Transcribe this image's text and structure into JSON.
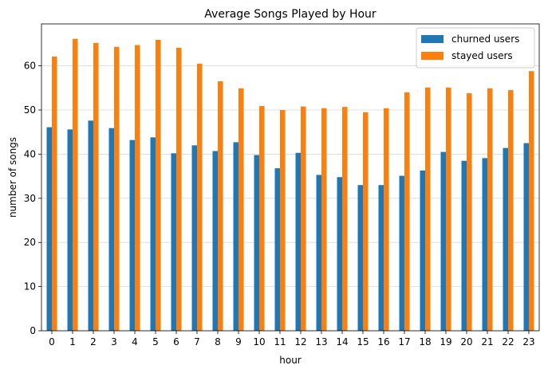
{
  "chart_data": {
    "type": "bar",
    "title": "Average Songs Played by Hour",
    "xlabel": "hour",
    "ylabel": "number of songs",
    "categories": [
      "0",
      "1",
      "2",
      "3",
      "4",
      "5",
      "6",
      "7",
      "8",
      "9",
      "10",
      "11",
      "12",
      "13",
      "14",
      "15",
      "16",
      "17",
      "18",
      "19",
      "20",
      "21",
      "22",
      "23"
    ],
    "ylim": [
      0,
      69.5
    ],
    "yticks": [
      0,
      10,
      20,
      30,
      40,
      50,
      60
    ],
    "grid": "horizontal",
    "legend_position": "top-right",
    "series": [
      {
        "name": "churned users",
        "color": "#1f77b4",
        "values": [
          46.1,
          45.6,
          47.6,
          45.9,
          43.2,
          43.8,
          40.2,
          42.0,
          40.7,
          42.7,
          39.8,
          36.8,
          40.3,
          35.3,
          34.8,
          33.0,
          33.0,
          35.1,
          36.3,
          40.5,
          38.5,
          39.1,
          41.4,
          42.5
        ]
      },
      {
        "name": "stayed users",
        "color": "#ff7f0e",
        "values": [
          62.1,
          66.1,
          65.2,
          64.3,
          64.7,
          65.9,
          64.1,
          60.5,
          56.5,
          54.9,
          50.9,
          50.0,
          50.8,
          50.4,
          50.7,
          49.5,
          50.4,
          54.0,
          55.1,
          55.1,
          53.8,
          54.9,
          54.5,
          58.8
        ]
      }
    ]
  }
}
